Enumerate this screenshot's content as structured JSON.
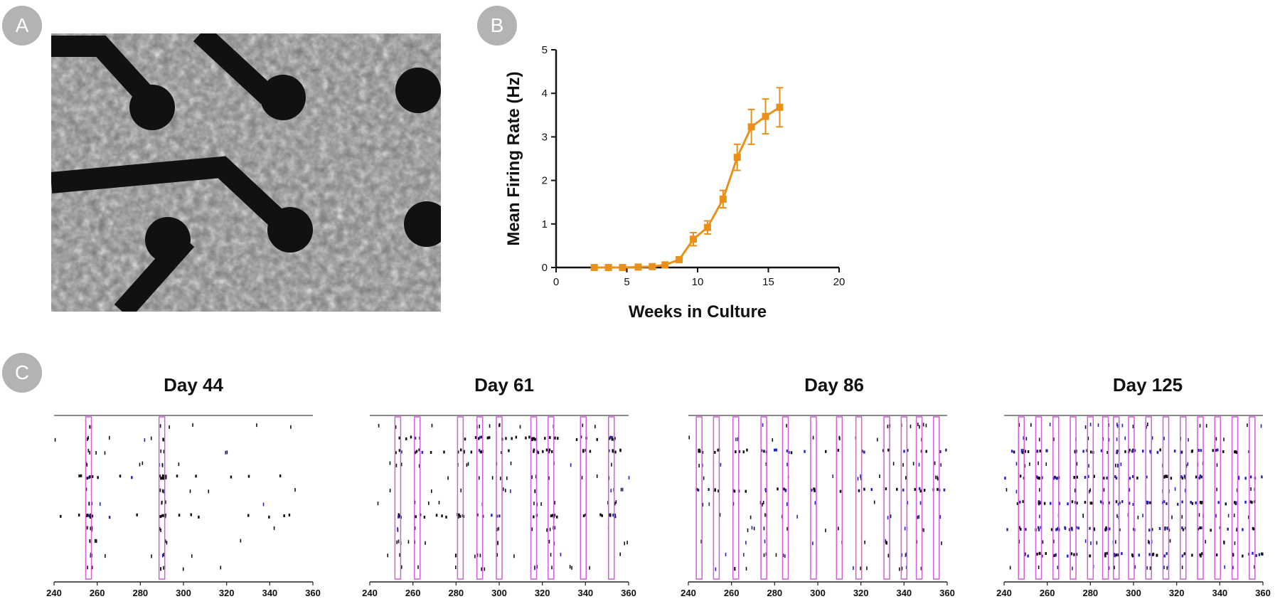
{
  "panels": {
    "a_label": "A",
    "b_label": "B",
    "c_label": "C"
  },
  "colors": {
    "line": "#E8901A",
    "box": "#D45DDC",
    "spike_black": "#111111",
    "spike_blue": "#2323B8",
    "badge": "#B3B3B3"
  },
  "chart_data": [
    {
      "type": "line",
      "panel": "B",
      "title": "",
      "xlabel": "Weeks in Culture",
      "ylabel": "Mean Firing Rate (Hz)",
      "xlim": [
        0,
        20
      ],
      "ylim": [
        0,
        5
      ],
      "x_ticks": [
        0,
        5,
        10,
        15,
        20
      ],
      "y_ticks": [
        0,
        1,
        2,
        3,
        4,
        5
      ],
      "grid": false,
      "x": [
        2.7,
        3.7,
        4.7,
        5.8,
        6.8,
        7.7,
        8.7,
        9.7,
        10.7,
        11.8,
        12.8,
        13.8,
        14.8,
        15.8
      ],
      "y": [
        0.0,
        0.0,
        0.0,
        0.01,
        0.02,
        0.06,
        0.18,
        0.65,
        0.92,
        1.57,
        2.53,
        3.23,
        3.47,
        3.68
      ],
      "error": [
        0.0,
        0.0,
        0.0,
        0.0,
        0.0,
        0.0,
        0.0,
        0.15,
        0.15,
        0.2,
        0.3,
        0.4,
        0.4,
        0.45
      ]
    },
    {
      "type": "raster",
      "panel": "C",
      "title": "Day 44",
      "xlim": [
        240,
        360
      ],
      "x_ticks": [
        240,
        260,
        280,
        300,
        320,
        340,
        360
      ],
      "bursts": [
        256,
        290
      ],
      "busy_rows": [
        4,
        7
      ],
      "density": 0.35,
      "blue_frac": 0.1
    },
    {
      "type": "raster",
      "panel": "C",
      "title": "Day 61",
      "xlim": [
        240,
        360
      ],
      "x_ticks": [
        240,
        260,
        280,
        300,
        320,
        340,
        360
      ],
      "bursts": [
        253,
        262,
        282,
        291,
        300,
        316,
        324,
        339,
        352
      ],
      "busy_rows": [
        1,
        2,
        7
      ],
      "density": 0.55,
      "blue_frac": 0.15
    },
    {
      "type": "raster",
      "panel": "C",
      "title": "Day 86",
      "xlim": [
        240,
        360
      ],
      "x_ticks": [
        240,
        260,
        280,
        300,
        320,
        340,
        360
      ],
      "bursts": [
        245,
        253,
        262,
        275,
        285,
        298,
        310,
        319,
        332,
        340,
        347,
        355
      ],
      "busy_rows": [
        2,
        5
      ],
      "density": 0.5,
      "blue_frac": 0.35
    },
    {
      "type": "raster",
      "panel": "C",
      "title": "Day 125",
      "xlim": [
        240,
        360
      ],
      "x_ticks": [
        240,
        260,
        280,
        300,
        320,
        340,
        360
      ],
      "bursts": [
        248,
        256,
        264,
        272,
        280,
        287,
        292,
        299,
        307,
        315,
        323,
        331,
        339,
        347,
        355
      ],
      "busy_rows": [
        2,
        4,
        6,
        8,
        10
      ],
      "density": 0.75,
      "blue_frac": 0.45
    }
  ]
}
